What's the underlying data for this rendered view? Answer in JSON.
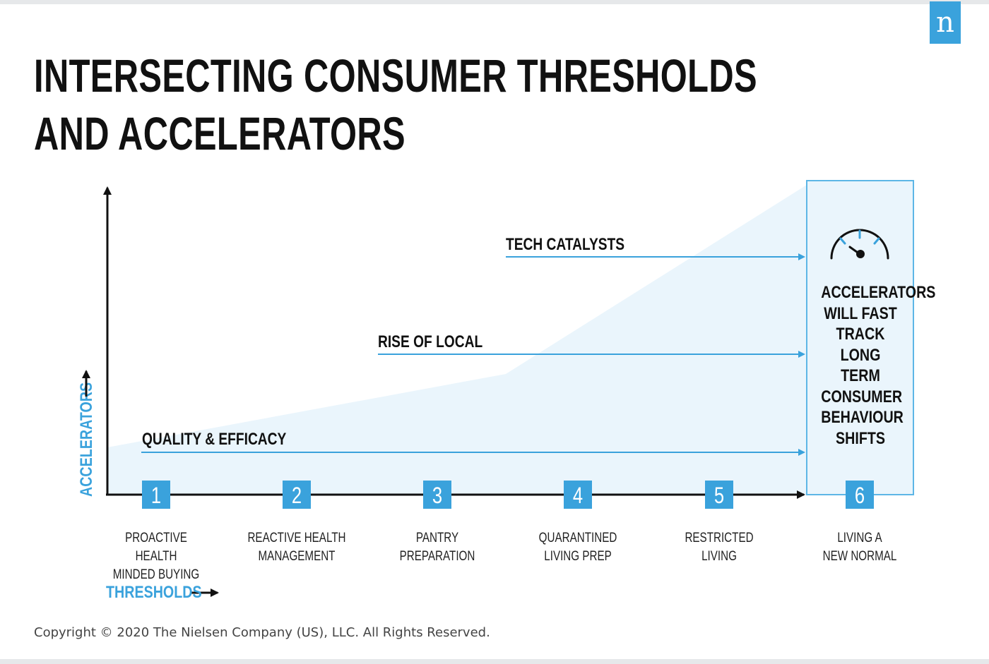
{
  "title": {
    "line1": "INTERSECTING CONSUMER THRESHOLDS",
    "line2": "AND ACCELERATORS"
  },
  "logo": {
    "text": "n"
  },
  "axes": {
    "y_label": "ACCELERATORS",
    "x_label": "THRESHOLDS"
  },
  "accelerators": [
    {
      "label": "TECH CATALYSTS"
    },
    {
      "label": "RISE OF LOCAL"
    },
    {
      "label": "QUALITY & EFFICACY"
    }
  ],
  "thresholds": [
    {
      "number": "1",
      "label": "PROACTIVE HEALTH\nMINDED BUYING"
    },
    {
      "number": "2",
      "label": "REACTIVE HEALTH\nMANAGEMENT"
    },
    {
      "number": "3",
      "label": "PANTRY\nPREPARATION"
    },
    {
      "number": "4",
      "label": "QUARANTINED\nLIVING PREP"
    },
    {
      "number": "5",
      "label": "RESTRICTED\nLIVING"
    },
    {
      "number": "6",
      "label": "LIVING A\nNEW NORMAL"
    }
  ],
  "callout": {
    "text": "ACCELERATORS\nWILL FAST\nTRACK LONG\nTERM\nCONSUMER\nBEHAVIOUR\nSHIFTS",
    "icon": "speedometer-icon"
  },
  "copyright": "Copyright © 2020 The Nielsen Company (US), LLC. All Rights Reserved.",
  "colors": {
    "accent": "#3aa2dc",
    "shade": "#eaf5fc",
    "ink": "#111111"
  }
}
